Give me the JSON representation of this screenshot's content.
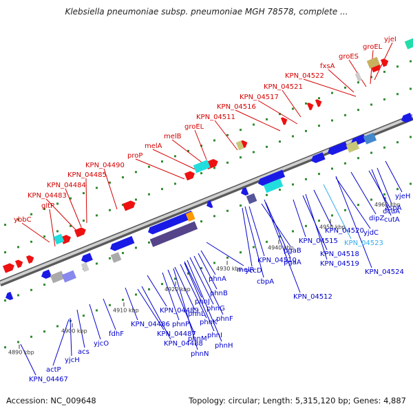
{
  "title": "Klebsiella pneumoniae subsp. pneumoniae MGH 78578, complete ...",
  "footer": {
    "accession": "Accession: NC_009648",
    "summary": "Topology: circular; Length: 5,315,120 bp; Genes: 4,887"
  },
  "colors": {
    "top_label": "#d40000",
    "bottom_label": "#0000cc",
    "highlight_label": "#33aaee"
  },
  "ruler_ticks": [
    "4890 kbp",
    "4900 kbp",
    "4910 kbp",
    "4920 kbp",
    "4930 kbp",
    "4940 kbp",
    "4950 kbp",
    "4960 kbp"
  ],
  "top_labels": [
    "ybbC",
    "gltP",
    "KPN_04483",
    "KPN_04484",
    "KPN_04485",
    "KPN_04490",
    "proP",
    "melA",
    "melB",
    "groEL",
    "KPN_04511",
    "KPN_04516",
    "KPN_04517",
    "KPN_04521",
    "KPN_04522",
    "fxsA",
    "groES",
    "groEL",
    "yjeI"
  ],
  "bottom_labels": [
    "KPN_04467",
    "actP",
    "yjcH",
    "acs",
    "yjcO",
    "fdhF",
    "KPN_04486",
    "KPN_04487",
    "KPN_04488",
    "KPN_04489",
    "phnP",
    "phnM",
    "phnN",
    "phnL",
    "phnK",
    "phnI",
    "phnJ",
    "phnH",
    "phnG",
    "phnF",
    "phnB",
    "phnA",
    "melR",
    "yccD",
    "cbpA",
    "KPN_04510",
    "pgaB",
    "pgaA",
    "KPN_04512",
    "KPN_04515",
    "KPN_04518",
    "KPN_04519",
    "KPN_04520",
    "KPN_04523",
    "yjdC",
    "dipZ",
    "KPN_04524",
    "dcuA",
    "cutA",
    "aspA",
    "yjeH"
  ]
}
